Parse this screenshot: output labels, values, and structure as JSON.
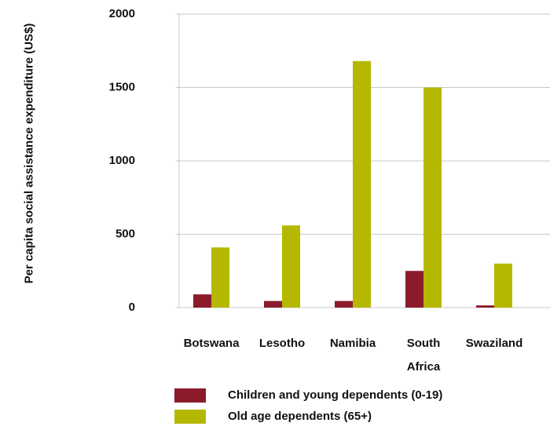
{
  "chart_data": {
    "type": "bar",
    "ylabel": "Per capita social assistance expenditure (US$)",
    "categories": [
      "Botswana",
      "Lesotho",
      "Namibia",
      "South Africa",
      "Swaziland"
    ],
    "series": [
      {
        "name": "Children and young dependents (0-19)",
        "color": "#8b1a2b",
        "values": [
          90,
          45,
          45,
          250,
          15
        ]
      },
      {
        "name": "Old age dependents (65+)",
        "color": "#b5b800",
        "values": [
          410,
          560,
          1680,
          1500,
          300
        ]
      }
    ],
    "ylim": [
      0,
      2000
    ],
    "yticks": [
      0,
      500,
      1000,
      1500,
      2000
    ],
    "grid": true
  }
}
